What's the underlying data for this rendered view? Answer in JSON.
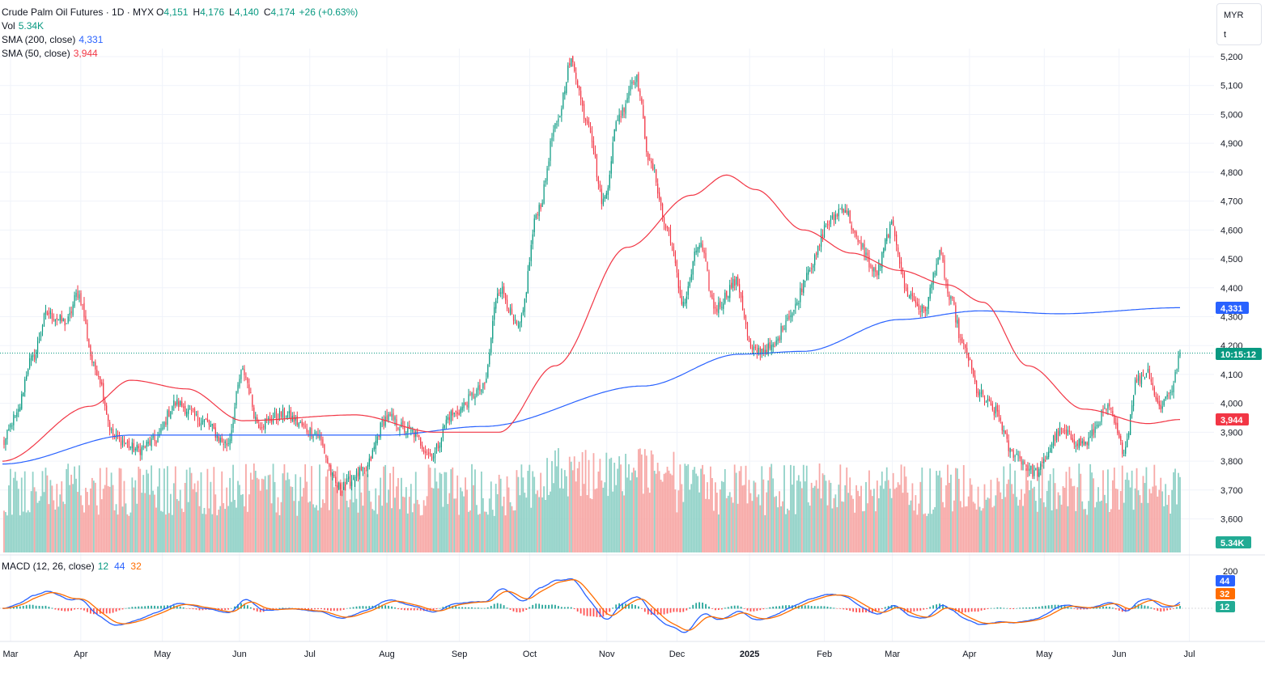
{
  "header": {
    "symbol_line": "Crude Palm Oil Futures · 1D · MYX",
    "open_label": "O",
    "open": "4,151",
    "high_label": "H",
    "high": "4,176",
    "low_label": "L",
    "low": "4,140",
    "close_label": "C",
    "close": "4,174",
    "change": "+26 (+0.63%)",
    "vol_label": "Vol",
    "vol_value": "5.34K",
    "sma200_label": "SMA (200, close)",
    "sma200_value": "4,331",
    "sma50_label": "SMA (50, close)",
    "sma50_value": "3,944",
    "macd_label": "MACD (12, 26, close)",
    "macd_v1": "12",
    "macd_v2": "44",
    "macd_v3": "32"
  },
  "currency_box": {
    "currency": "MYR",
    "unit": "t"
  },
  "badges": {
    "sma200": "4,331",
    "countdown": "10:15:12",
    "sma50": "3,944",
    "volume": "5.34K",
    "macd_a": "44",
    "macd_b": "32",
    "macd_c": "12"
  },
  "colors": {
    "up": "#089981",
    "down": "#f23645",
    "sma200": "#2962ff",
    "sma50": "#f23645",
    "macd_signal": "#ff6d00"
  },
  "chart_data": {
    "type": "candlestick",
    "title": "Crude Palm Oil Futures · 1D · MYX",
    "x_ticks": [
      "Mar",
      "Apr",
      "May",
      "Jun",
      "Jul",
      "Aug",
      "Sep",
      "Oct",
      "Nov",
      "Dec",
      "2025",
      "Feb",
      "Mar",
      "Apr",
      "May",
      "Jun",
      "Jul"
    ],
    "y_ticks": [
      "5,200",
      "5,100",
      "5,000",
      "4,900",
      "4,800",
      "4,700",
      "4,600",
      "4,500",
      "4,400",
      "4,300",
      "4,200",
      "4,100",
      "4,000",
      "3,900",
      "3,800",
      "3,700",
      "3,600"
    ],
    "ylim": [
      3560,
      5240
    ],
    "macd_ticks": [
      "200"
    ],
    "last_price": 4174,
    "close_anchors": [
      [
        0,
        3860
      ],
      [
        8,
        3950
      ],
      [
        18,
        4150
      ],
      [
        28,
        4310
      ],
      [
        40,
        4280
      ],
      [
        47,
        4380
      ],
      [
        58,
        4120
      ],
      [
        70,
        3880
      ],
      [
        85,
        3840
      ],
      [
        95,
        3870
      ],
      [
        108,
        4000
      ],
      [
        125,
        3940
      ],
      [
        140,
        3860
      ],
      [
        150,
        4110
      ],
      [
        160,
        3930
      ],
      [
        175,
        3960
      ],
      [
        195,
        3900
      ],
      [
        210,
        3710
      ],
      [
        225,
        3760
      ],
      [
        240,
        3950
      ],
      [
        255,
        3900
      ],
      [
        268,
        3820
      ],
      [
        280,
        3960
      ],
      [
        300,
        4050
      ],
      [
        310,
        4400
      ],
      [
        322,
        4260
      ],
      [
        335,
        4680
      ],
      [
        345,
        4950
      ],
      [
        355,
        5180
      ],
      [
        365,
        4980
      ],
      [
        375,
        4700
      ],
      [
        385,
        5000
      ],
      [
        395,
        5130
      ],
      [
        405,
        4820
      ],
      [
        415,
        4600
      ],
      [
        425,
        4350
      ],
      [
        435,
        4550
      ],
      [
        445,
        4330
      ],
      [
        458,
        4420
      ],
      [
        468,
        4180
      ],
      [
        480,
        4190
      ],
      [
        492,
        4310
      ],
      [
        505,
        4480
      ],
      [
        515,
        4620
      ],
      [
        525,
        4680
      ],
      [
        535,
        4550
      ],
      [
        545,
        4450
      ],
      [
        555,
        4610
      ],
      [
        565,
        4380
      ],
      [
        575,
        4320
      ],
      [
        585,
        4510
      ],
      [
        592,
        4350
      ],
      [
        600,
        4190
      ],
      [
        610,
        4030
      ],
      [
        620,
        3970
      ],
      [
        630,
        3830
      ],
      [
        645,
        3760
      ],
      [
        660,
        3900
      ],
      [
        675,
        3860
      ],
      [
        690,
        3980
      ],
      [
        700,
        3840
      ],
      [
        708,
        4080
      ],
      [
        715,
        4110
      ],
      [
        722,
        3990
      ],
      [
        730,
        4050
      ],
      [
        735,
        4174
      ]
    ],
    "sma200_anchors": [
      [
        0,
        3790
      ],
      [
        80,
        3890
      ],
      [
        240,
        3890
      ],
      [
        300,
        3920
      ],
      [
        400,
        4060
      ],
      [
        460,
        4170
      ],
      [
        500,
        4180
      ],
      [
        560,
        4290
      ],
      [
        610,
        4320
      ],
      [
        660,
        4310
      ],
      [
        735,
        4331
      ]
    ],
    "sma50_anchors": [
      [
        0,
        3800
      ],
      [
        55,
        3990
      ],
      [
        80,
        4080
      ],
      [
        115,
        4050
      ],
      [
        150,
        3940
      ],
      [
        220,
        3960
      ],
      [
        270,
        3900
      ],
      [
        310,
        3900
      ],
      [
        345,
        4130
      ],
      [
        390,
        4540
      ],
      [
        430,
        4720
      ],
      [
        452,
        4790
      ],
      [
        470,
        4740
      ],
      [
        500,
        4600
      ],
      [
        530,
        4520
      ],
      [
        560,
        4460
      ],
      [
        590,
        4410
      ],
      [
        612,
        4350
      ],
      [
        640,
        4130
      ],
      [
        675,
        3980
      ],
      [
        715,
        3930
      ],
      [
        735,
        3944
      ]
    ]
  }
}
